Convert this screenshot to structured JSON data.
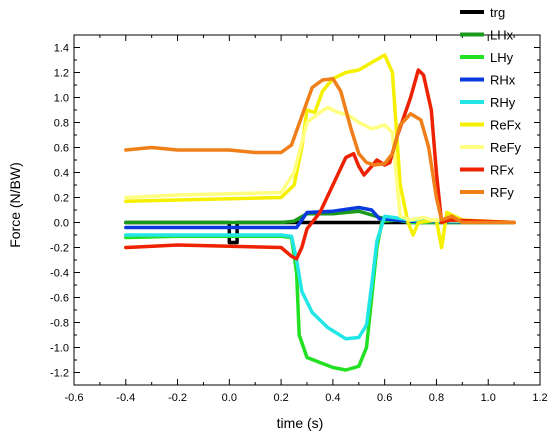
{
  "chart_data": {
    "type": "line",
    "xlabel": "time (s)",
    "ylabel": "Force (N/BW)",
    "xlim": [
      -0.6,
      1.2
    ],
    "ylim": [
      -1.3,
      1.5
    ],
    "xticks": [
      -0.6,
      -0.4,
      -0.2,
      0.0,
      0.2,
      0.4,
      0.6,
      0.8,
      1.0,
      1.2
    ],
    "xtick_labels": [
      "-0.6",
      "-0.4",
      "-0.2",
      "0.0",
      "0.2",
      "0.4",
      "0.6",
      "0.8",
      "1.0",
      "1.2"
    ],
    "yticks": [
      -1.2,
      -1.0,
      -0.8,
      -0.6,
      -0.4,
      -0.2,
      0.0,
      0.2,
      0.4,
      0.6,
      0.8,
      1.0,
      1.2,
      1.4
    ],
    "ytick_labels": [
      "-1.2",
      "-1.0",
      "-0.8",
      "-0.6",
      "-0.4",
      "-0.2",
      "0.0",
      "0.2",
      "0.4",
      "0.6",
      "0.8",
      "1.0",
      "1.2",
      "1.4"
    ],
    "grid": false,
    "legend_position": "top-right",
    "series": [
      {
        "name": "trg",
        "color": "#000000",
        "points": [
          [
            -0.4,
            0.0
          ],
          [
            0.0,
            0.0
          ],
          [
            0.0,
            -0.16
          ],
          [
            0.03,
            -0.16
          ],
          [
            0.03,
            0.0
          ],
          [
            1.1,
            0.0
          ]
        ]
      },
      {
        "name": "LHx",
        "color": "#1a9a1a",
        "points": [
          [
            -0.4,
            0.0
          ],
          [
            0.2,
            0.0
          ],
          [
            0.25,
            0.01
          ],
          [
            0.3,
            0.07
          ],
          [
            0.4,
            0.07
          ],
          [
            0.5,
            0.09
          ],
          [
            0.55,
            0.06
          ],
          [
            0.6,
            0.03
          ],
          [
            0.7,
            0.02
          ],
          [
            0.8,
            0.01
          ],
          [
            1.1,
            0.0
          ]
        ]
      },
      {
        "name": "LHy",
        "color": "#22e022",
        "points": [
          [
            -0.4,
            -0.12
          ],
          [
            -0.2,
            -0.11
          ],
          [
            0.0,
            -0.11
          ],
          [
            0.2,
            -0.11
          ],
          [
            0.24,
            -0.12
          ],
          [
            0.26,
            -0.4
          ],
          [
            0.27,
            -0.9
          ],
          [
            0.3,
            -1.08
          ],
          [
            0.35,
            -1.12
          ],
          [
            0.4,
            -1.16
          ],
          [
            0.45,
            -1.18
          ],
          [
            0.5,
            -1.15
          ],
          [
            0.53,
            -1.0
          ],
          [
            0.55,
            -0.6
          ],
          [
            0.57,
            -0.2
          ],
          [
            0.59,
            0.01
          ],
          [
            0.65,
            0.02
          ],
          [
            0.7,
            0.0
          ],
          [
            1.1,
            0.0
          ]
        ]
      },
      {
        "name": "RHx",
        "color": "#0a3adf",
        "points": [
          [
            -0.4,
            -0.04
          ],
          [
            0.0,
            -0.04
          ],
          [
            0.2,
            -0.04
          ],
          [
            0.26,
            -0.04
          ],
          [
            0.3,
            0.08
          ],
          [
            0.4,
            0.09
          ],
          [
            0.5,
            0.12
          ],
          [
            0.55,
            0.1
          ],
          [
            0.58,
            0.03
          ],
          [
            0.7,
            0.01
          ],
          [
            1.1,
            0.0
          ]
        ]
      },
      {
        "name": "RHy",
        "color": "#22e6e6",
        "points": [
          [
            -0.4,
            -0.1
          ],
          [
            0.0,
            -0.1
          ],
          [
            0.2,
            -0.1
          ],
          [
            0.24,
            -0.11
          ],
          [
            0.26,
            -0.3
          ],
          [
            0.28,
            -0.55
          ],
          [
            0.32,
            -0.72
          ],
          [
            0.38,
            -0.84
          ],
          [
            0.45,
            -0.93
          ],
          [
            0.5,
            -0.92
          ],
          [
            0.53,
            -0.82
          ],
          [
            0.55,
            -0.5
          ],
          [
            0.57,
            -0.15
          ],
          [
            0.6,
            0.05
          ],
          [
            0.7,
            0.02
          ],
          [
            1.1,
            0.0
          ]
        ]
      },
      {
        "name": "ReFx",
        "color": "#f5ef00",
        "points": [
          [
            -0.4,
            0.17
          ],
          [
            -0.2,
            0.18
          ],
          [
            0.0,
            0.19
          ],
          [
            0.2,
            0.2
          ],
          [
            0.25,
            0.3
          ],
          [
            0.28,
            0.6
          ],
          [
            0.3,
            0.9
          ],
          [
            0.33,
            0.88
          ],
          [
            0.36,
            1.05
          ],
          [
            0.4,
            1.15
          ],
          [
            0.45,
            1.2
          ],
          [
            0.5,
            1.22
          ],
          [
            0.55,
            1.28
          ],
          [
            0.6,
            1.34
          ],
          [
            0.63,
            1.2
          ],
          [
            0.66,
            0.3
          ],
          [
            0.69,
            0.0
          ],
          [
            0.71,
            -0.1
          ],
          [
            0.73,
            0.0
          ],
          [
            0.8,
            0.02
          ],
          [
            0.82,
            -0.2
          ],
          [
            0.84,
            0.08
          ],
          [
            0.9,
            0.02
          ],
          [
            1.1,
            0.0
          ]
        ]
      },
      {
        "name": "ReFy",
        "color": "#ffff80",
        "points": [
          [
            -0.4,
            0.2
          ],
          [
            -0.2,
            0.22
          ],
          [
            0.0,
            0.23
          ],
          [
            0.2,
            0.24
          ],
          [
            0.25,
            0.4
          ],
          [
            0.3,
            0.8
          ],
          [
            0.35,
            0.88
          ],
          [
            0.38,
            0.92
          ],
          [
            0.42,
            0.88
          ],
          [
            0.46,
            0.86
          ],
          [
            0.5,
            0.8
          ],
          [
            0.55,
            0.75
          ],
          [
            0.6,
            0.78
          ],
          [
            0.63,
            0.72
          ],
          [
            0.66,
            0.05
          ],
          [
            0.7,
            0.02
          ],
          [
            0.75,
            0.04
          ],
          [
            0.78,
            0.02
          ],
          [
            1.1,
            0.0
          ]
        ]
      },
      {
        "name": "RFx",
        "color": "#ee2200",
        "points": [
          [
            -0.4,
            -0.2
          ],
          [
            -0.2,
            -0.18
          ],
          [
            0.0,
            -0.19
          ],
          [
            0.2,
            -0.2
          ],
          [
            0.24,
            -0.27
          ],
          [
            0.26,
            -0.29
          ],
          [
            0.28,
            -0.2
          ],
          [
            0.3,
            -0.05
          ],
          [
            0.35,
            0.08
          ],
          [
            0.4,
            0.3
          ],
          [
            0.45,
            0.52
          ],
          [
            0.48,
            0.55
          ],
          [
            0.5,
            0.45
          ],
          [
            0.52,
            0.38
          ],
          [
            0.55,
            0.45
          ],
          [
            0.57,
            0.5
          ],
          [
            0.6,
            0.46
          ],
          [
            0.62,
            0.48
          ],
          [
            0.65,
            0.7
          ],
          [
            0.7,
            1.0
          ],
          [
            0.73,
            1.22
          ],
          [
            0.75,
            1.18
          ],
          [
            0.78,
            0.9
          ],
          [
            0.8,
            0.4
          ],
          [
            0.82,
            0.0
          ],
          [
            0.85,
            0.02
          ],
          [
            1.1,
            0.0
          ]
        ]
      },
      {
        "name": "RFy",
        "color": "#f07f1a",
        "points": [
          [
            -0.4,
            0.58
          ],
          [
            -0.3,
            0.6
          ],
          [
            -0.2,
            0.58
          ],
          [
            0.0,
            0.58
          ],
          [
            0.1,
            0.56
          ],
          [
            0.2,
            0.56
          ],
          [
            0.24,
            0.62
          ],
          [
            0.28,
            0.85
          ],
          [
            0.32,
            1.08
          ],
          [
            0.36,
            1.14
          ],
          [
            0.4,
            1.15
          ],
          [
            0.43,
            1.05
          ],
          [
            0.47,
            0.75
          ],
          [
            0.5,
            0.55
          ],
          [
            0.53,
            0.48
          ],
          [
            0.56,
            0.46
          ],
          [
            0.6,
            0.47
          ],
          [
            0.63,
            0.55
          ],
          [
            0.66,
            0.78
          ],
          [
            0.7,
            0.87
          ],
          [
            0.74,
            0.82
          ],
          [
            0.77,
            0.6
          ],
          [
            0.8,
            0.2
          ],
          [
            0.82,
            0.02
          ],
          [
            0.86,
            0.05
          ],
          [
            0.9,
            0.0
          ],
          [
            1.0,
            0.0
          ],
          [
            1.1,
            0.0
          ]
        ]
      }
    ]
  }
}
